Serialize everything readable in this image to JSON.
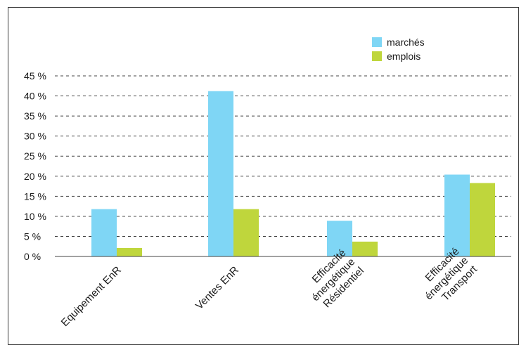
{
  "colors": {
    "marches": "#7fd6f5",
    "emplois": "#bfd63c",
    "grid": "#444444"
  },
  "chart_data": {
    "type": "bar",
    "categories": [
      [
        "Equipement EnR"
      ],
      [
        "Ventes EnR"
      ],
      [
        "Efficacité",
        "énergétique",
        "Résidentiel"
      ],
      [
        "Efficacité",
        "énergétique",
        "Transport"
      ]
    ],
    "series": [
      {
        "name": "marchés",
        "values": [
          11.8,
          41.2,
          8.9,
          20.4
        ]
      },
      {
        "name": "emplois",
        "values": [
          2.1,
          11.8,
          3.7,
          18.3
        ]
      }
    ],
    "yticks": [
      "0 %",
      "5 %",
      "10 %",
      "15 %",
      "20 %",
      "25 %",
      "30 %",
      "35 %",
      "40 %",
      "45 %"
    ],
    "ylim": [
      0,
      45
    ],
    "grid": true,
    "legend_position": "top-right",
    "title": "",
    "xlabel": "",
    "ylabel": ""
  }
}
